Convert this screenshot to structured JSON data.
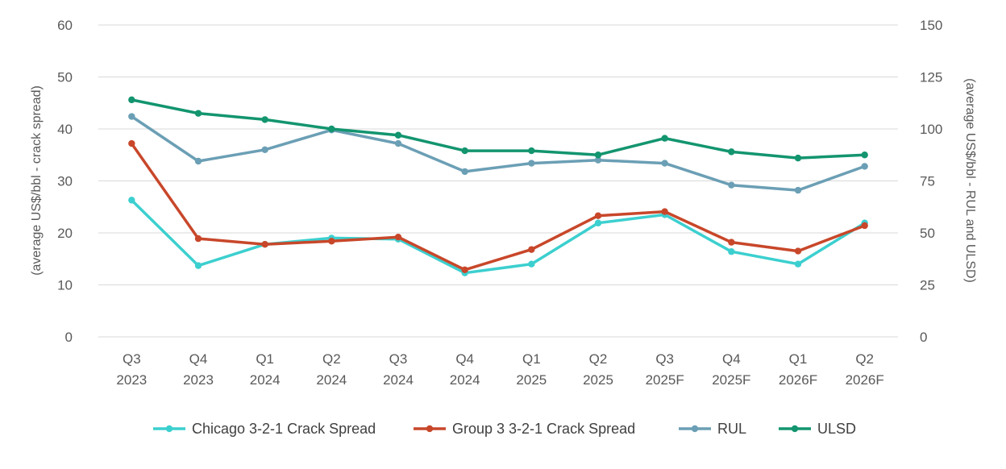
{
  "chart_data": {
    "type": "line",
    "categories": [
      [
        "Q3",
        "2023"
      ],
      [
        "Q4",
        "2023"
      ],
      [
        "Q1",
        "2024"
      ],
      [
        "Q2",
        "2024"
      ],
      [
        "Q3",
        "2024"
      ],
      [
        "Q4",
        "2024"
      ],
      [
        "Q1",
        "2025"
      ],
      [
        "Q2",
        "2025"
      ],
      [
        "Q3",
        "2025F"
      ],
      [
        "Q4",
        "2025F"
      ],
      [
        "Q1",
        "2026F"
      ],
      [
        "Q2",
        "2026F"
      ]
    ],
    "y_left": {
      "label": "(average US$/bbl - crack spread)",
      "ylim": [
        0,
        60
      ],
      "ticks": [
        0,
        10,
        20,
        30,
        40,
        50,
        60
      ]
    },
    "y_right": {
      "label": "(average US$/bbl - RUL and ULSD)",
      "ylim": [
        0,
        150
      ],
      "ticks": [
        0,
        25,
        50,
        75,
        100,
        125,
        150
      ]
    },
    "grid": true,
    "legend_position": "bottom",
    "series": [
      {
        "name": "Chicago 3-2-1 Crack Spread",
        "axis": "left",
        "color": "#3ccfcf",
        "values": [
          26.3,
          13.7,
          17.8,
          19.0,
          18.8,
          12.3,
          14.0,
          21.9,
          23.5,
          16.4,
          14.0,
          21.9
        ]
      },
      {
        "name": "Group 3 3-2-1 Crack Spread",
        "axis": "left",
        "color": "#c8472a",
        "values": [
          37.2,
          18.9,
          17.8,
          18.4,
          19.2,
          12.9,
          16.8,
          23.3,
          24.1,
          18.2,
          16.5,
          21.4
        ]
      },
      {
        "name": "RUL",
        "axis": "right",
        "color": "#6b9fb5",
        "values": [
          106,
          84.5,
          90,
          99.5,
          93,
          79.5,
          83.5,
          85,
          83.5,
          73,
          70.5,
          82
        ]
      },
      {
        "name": "ULSD",
        "axis": "right",
        "color": "#13956f",
        "values": [
          114,
          107.5,
          104.5,
          100,
          97,
          89.5,
          89.5,
          87.5,
          95.5,
          89,
          86,
          87.5
        ]
      }
    ]
  }
}
